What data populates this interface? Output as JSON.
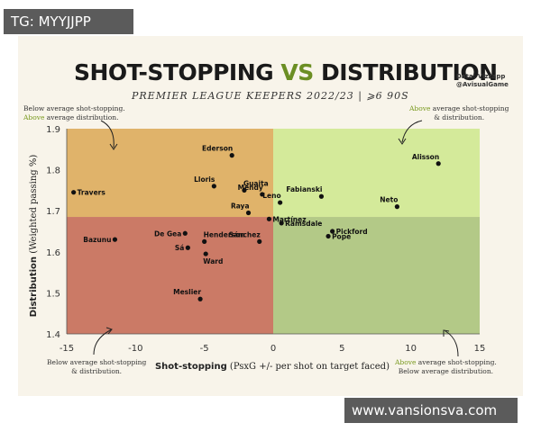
{
  "watermarks": {
    "top": "TG: MYYJJPP",
    "bottom": "www.vansionsva.com"
  },
  "header": {
    "title_a": "SHOT-STOPPING",
    "title_vs": "VS",
    "title_b": "DISTRIBUTION",
    "subtitle": "PREMIER LEAGUE KEEPERS 2022/23  |  ⩾6 90S",
    "credit_line1": "Data: Vizzapp",
    "credit_line2": "@AvisualGame"
  },
  "notes": {
    "top_left_1": "Below average shot-stopping.",
    "top_left_2_green": "Above",
    "top_left_2_rest": " average distribution.",
    "top_right_1_green": "Above",
    "top_right_1_rest": " average shot-stopping",
    "top_right_2": "& distribution.",
    "bottom_left_1": "Below average shot-stopping",
    "bottom_left_2": "& distribution.",
    "bottom_right_1_green": "Above",
    "bottom_right_1_rest": " average shot-stopping.",
    "bottom_right_2": "Below average distribution."
  },
  "colors": {
    "q_top_left": "#e0b36a",
    "q_top_right": "#d4ea9a",
    "q_bottom_left": "#cb7a66",
    "q_bottom_right": "#b3c987",
    "dot": "#111111",
    "accent_green": "#6b8e23"
  },
  "chart_data": {
    "type": "scatter",
    "xlabel_bold": "Shot-stopping",
    "xlabel_rest": " (PsxG +/- per shot on target faced)",
    "ylabel_bold": "Distribution",
    "ylabel_rest": " (Weighted passing %)",
    "xlim": [
      -15,
      15
    ],
    "ylim": [
      14,
      19
    ],
    "x_ticks": [
      -15,
      -10,
      -5,
      0,
      5,
      10,
      15
    ],
    "y_ticks": [
      14,
      15,
      16,
      17,
      18,
      19
    ],
    "x_tick_labels": [
      "-15",
      "-10",
      "-5",
      "0",
      "5",
      "10",
      "15"
    ],
    "y_tick_labels": [
      "1.4",
      "1.5",
      "1.6",
      "1.7",
      "1.8",
      "1.9"
    ],
    "average_x": 0,
    "average_y": 16.85,
    "points": [
      {
        "name": "Alisson",
        "x": 12.0,
        "y": 18.15,
        "label_pos": "above-left"
      },
      {
        "name": "Ederson",
        "x": -3.0,
        "y": 18.35,
        "label_pos": "above-left"
      },
      {
        "name": "Travers",
        "x": -14.5,
        "y": 17.45,
        "label_pos": "right"
      },
      {
        "name": "Lloris",
        "x": -4.3,
        "y": 17.6,
        "label_pos": "above-left"
      },
      {
        "name": "Guaita",
        "x": -2.1,
        "y": 17.5,
        "label_pos": "above-right"
      },
      {
        "name": "Mendy",
        "x": -0.8,
        "y": 17.4,
        "label_pos": "above-left"
      },
      {
        "name": "Fabianski",
        "x": 3.5,
        "y": 17.35,
        "label_pos": "above-left"
      },
      {
        "name": "Leno",
        "x": 0.5,
        "y": 17.2,
        "label_pos": "above-left"
      },
      {
        "name": "Neto",
        "x": 9.0,
        "y": 17.1,
        "label_pos": "above-left"
      },
      {
        "name": "Raya",
        "x": -1.8,
        "y": 16.95,
        "label_pos": "above-left"
      },
      {
        "name": "Martínez",
        "x": -0.3,
        "y": 16.8,
        "label_pos": "right"
      },
      {
        "name": "Ramsdale",
        "x": 0.6,
        "y": 16.7,
        "label_pos": "right"
      },
      {
        "name": "Pickford",
        "x": 4.3,
        "y": 16.5,
        "label_pos": "right"
      },
      {
        "name": "Pope",
        "x": 4.0,
        "y": 16.38,
        "label_pos": "right"
      },
      {
        "name": "De Gea",
        "x": -6.4,
        "y": 16.45,
        "label_pos": "left"
      },
      {
        "name": "Bazunu",
        "x": -11.5,
        "y": 16.3,
        "label_pos": "left"
      },
      {
        "name": "Henderson",
        "x": -5.0,
        "y": 16.25,
        "label_pos": "above-right"
      },
      {
        "name": "Sánchez",
        "x": -1.0,
        "y": 16.25,
        "label_pos": "above-left"
      },
      {
        "name": "Sá",
        "x": -6.2,
        "y": 16.1,
        "label_pos": "left"
      },
      {
        "name": "Ward",
        "x": -4.9,
        "y": 15.95,
        "label_pos": "below"
      },
      {
        "name": "Meslier",
        "x": -5.3,
        "y": 14.85,
        "label_pos": "above-left"
      }
    ]
  }
}
